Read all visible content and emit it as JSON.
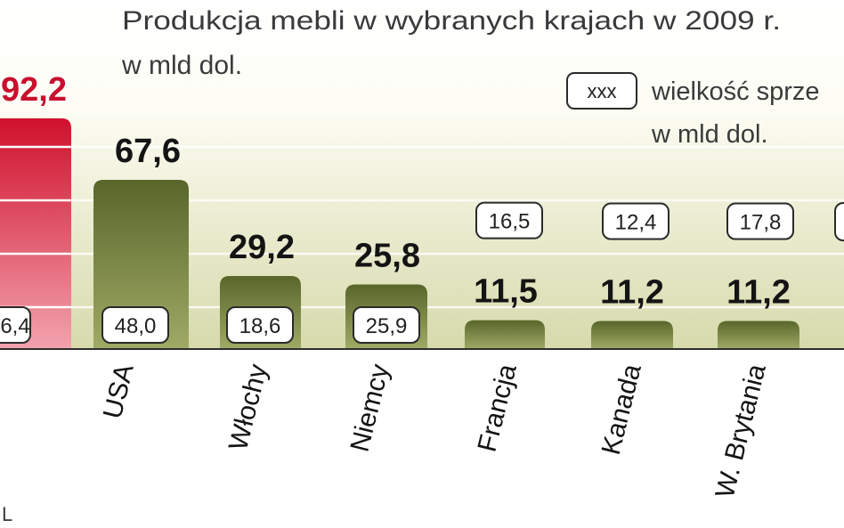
{
  "chart_data": {
    "type": "bar",
    "title": "Produkcja mebli w wybranych krajach w 2009 r.",
    "subtitle": "w mld dol.",
    "categories": [
      "",
      "USA",
      "Włochy",
      "Niemcy",
      "Francja",
      "Kanada",
      "W. Brytania"
    ],
    "series": [
      {
        "values": [
          92.2,
          67.6,
          29.2,
          25.8,
          11.5,
          11.2,
          11.2
        ]
      },
      {
        "name": "wielkość sprze",
        "unit": "w mld dol.",
        "values": [
          6.4,
          48.0,
          18.6,
          25.9,
          16.5,
          12.4,
          17.8
        ]
      }
    ],
    "highlight_index": 0,
    "ylim": [
      0,
      139.5
    ],
    "grid": true,
    "legend": {
      "placement": "top-right",
      "symbol_label": "xxx"
    },
    "colors": {
      "bar": "#58662a",
      "bar_light": "#a0aa66",
      "highlight": "#d0102c",
      "highlight_light": "#f2a3ae",
      "text": "#141414",
      "highlight_text": "#c8102e"
    }
  },
  "source": "L"
}
